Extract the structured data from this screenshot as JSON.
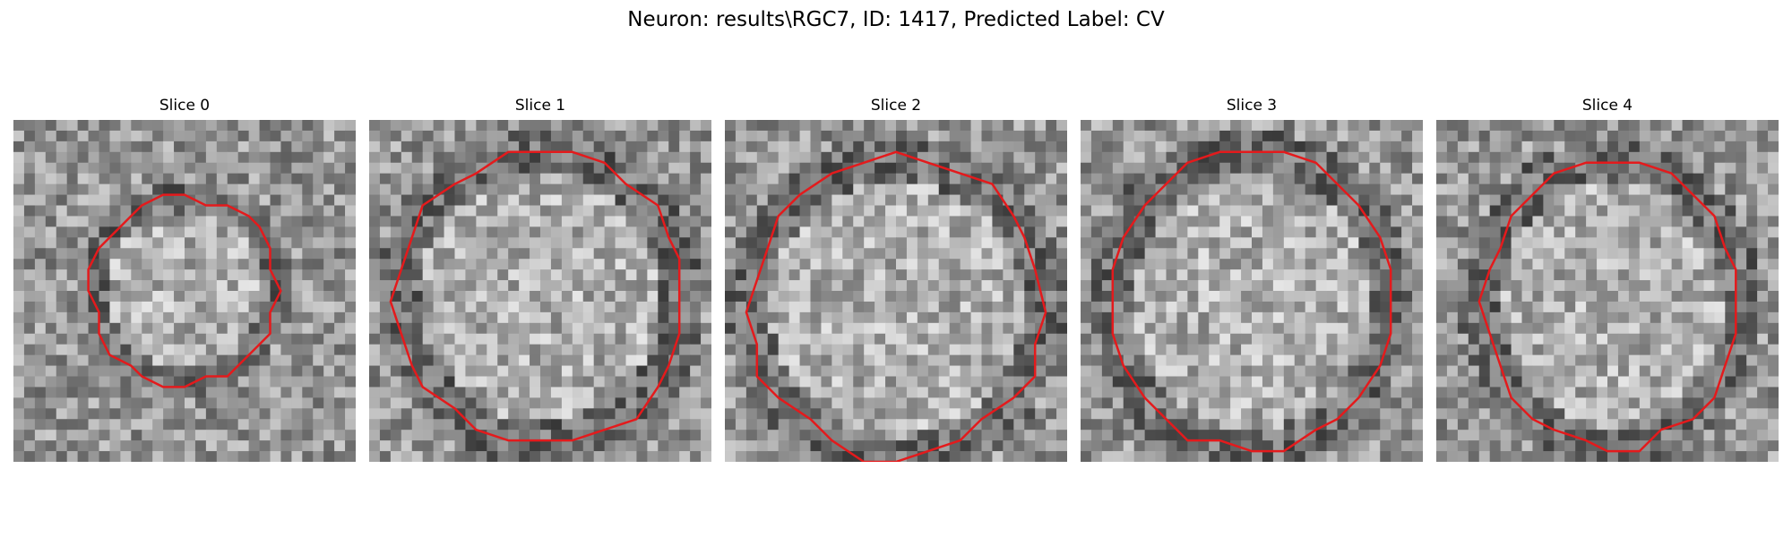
{
  "figure": {
    "title": "Neuron: results\\RGC7, ID: 1417, Predicted Label: CV"
  },
  "panels": [
    {
      "title": "Slice 0",
      "seed": 11,
      "contour_center": [
        0.5,
        0.5
      ],
      "contour_radius_x": 0.27,
      "contour_radius_y": 0.27
    },
    {
      "title": "Slice 1",
      "seed": 23,
      "contour_center": [
        0.5,
        0.52
      ],
      "contour_radius_x": 0.42,
      "contour_radius_y": 0.43
    },
    {
      "title": "Slice 2",
      "seed": 37,
      "contour_center": [
        0.5,
        0.55
      ],
      "contour_radius_x": 0.43,
      "contour_radius_y": 0.44
    },
    {
      "title": "Slice 3",
      "seed": 41,
      "contour_center": [
        0.5,
        0.53
      ],
      "contour_radius_x": 0.41,
      "contour_radius_y": 0.44
    },
    {
      "title": "Slice 4",
      "seed": 53,
      "contour_center": [
        0.51,
        0.54
      ],
      "contour_radius_x": 0.38,
      "contour_radius_y": 0.42
    }
  ],
  "contour_color": "#e41a1c"
}
